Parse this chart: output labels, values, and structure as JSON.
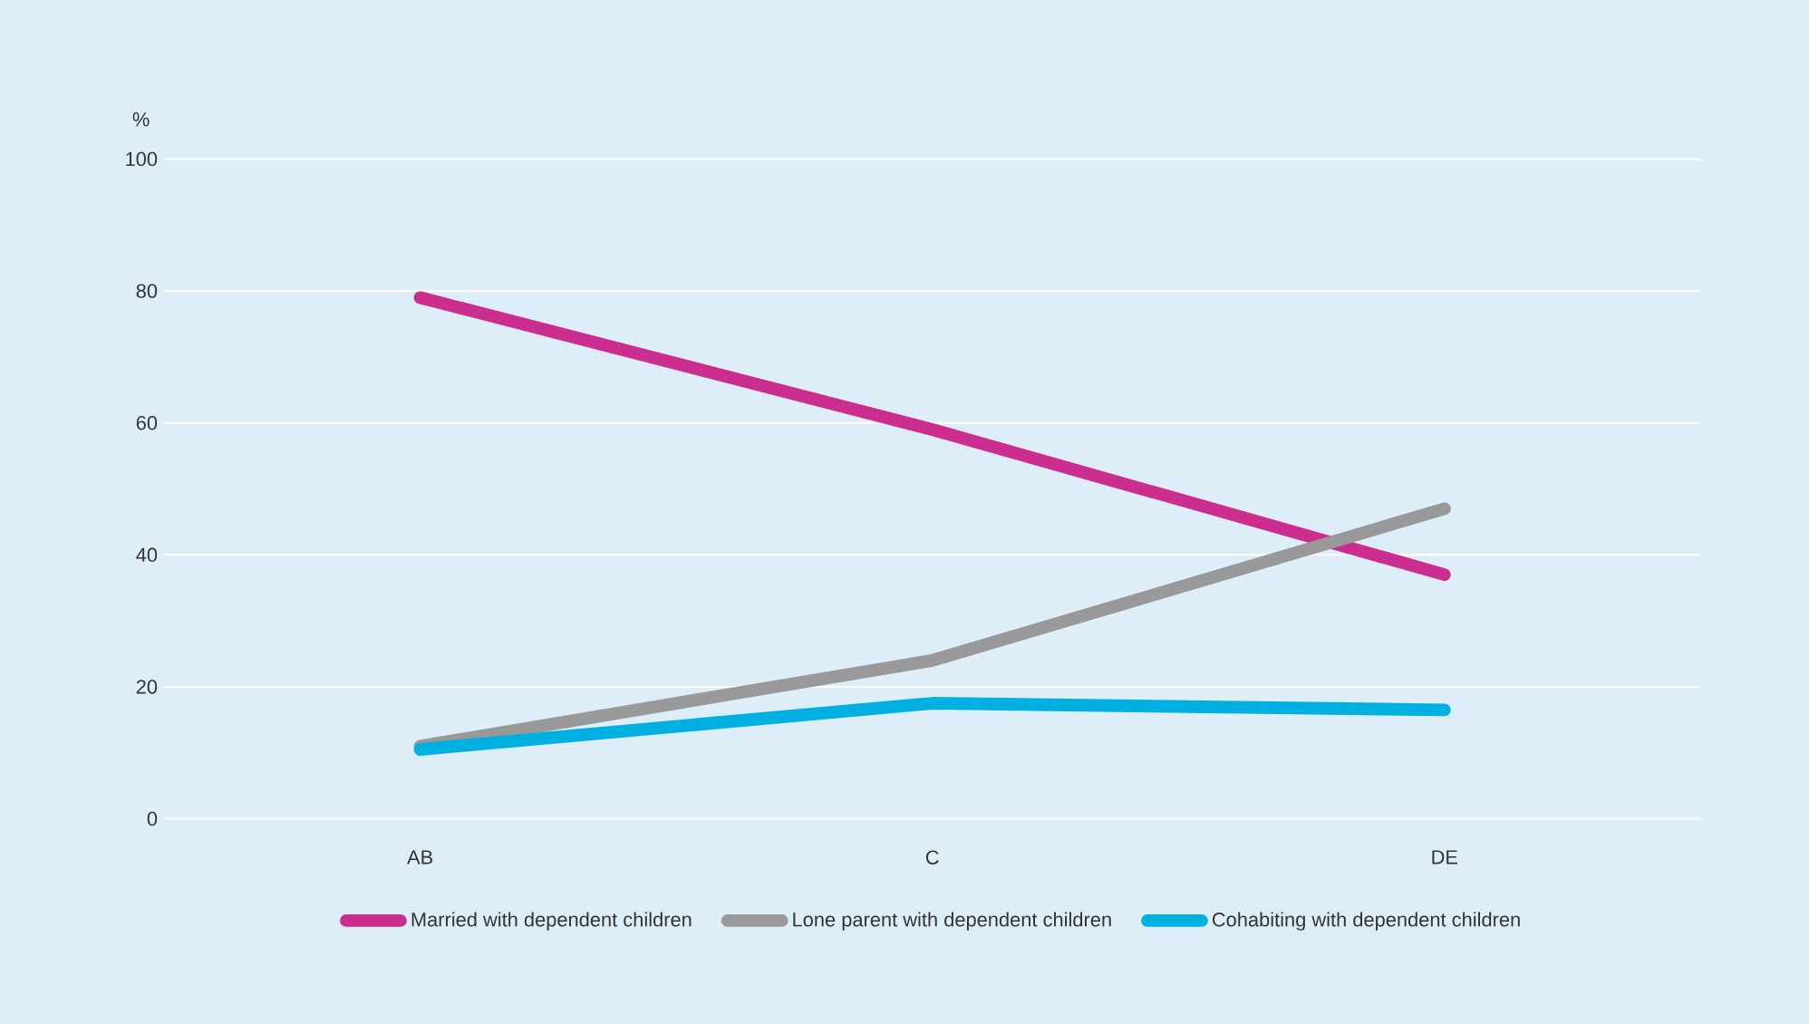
{
  "chart_data": {
    "type": "line",
    "ylabel": "%",
    "categories": [
      "AB",
      "C",
      "DE"
    ],
    "series": [
      {
        "name": "Married with dependent children",
        "color": "#cc2e8f",
        "values": [
          79,
          59,
          37
        ]
      },
      {
        "name": "Lone parent with dependent children",
        "color": "#999999",
        "values": [
          11,
          24,
          47
        ]
      },
      {
        "name": "Cohabiting with dependent children",
        "color": "#00b0e0",
        "values": [
          10.5,
          17.5,
          16.5
        ]
      }
    ],
    "ylim": [
      0,
      100
    ],
    "yticks": [
      0,
      20,
      40,
      60,
      80,
      100
    ],
    "grid": "y",
    "legend": "bottom",
    "marker": "none",
    "line_style": "solid"
  }
}
